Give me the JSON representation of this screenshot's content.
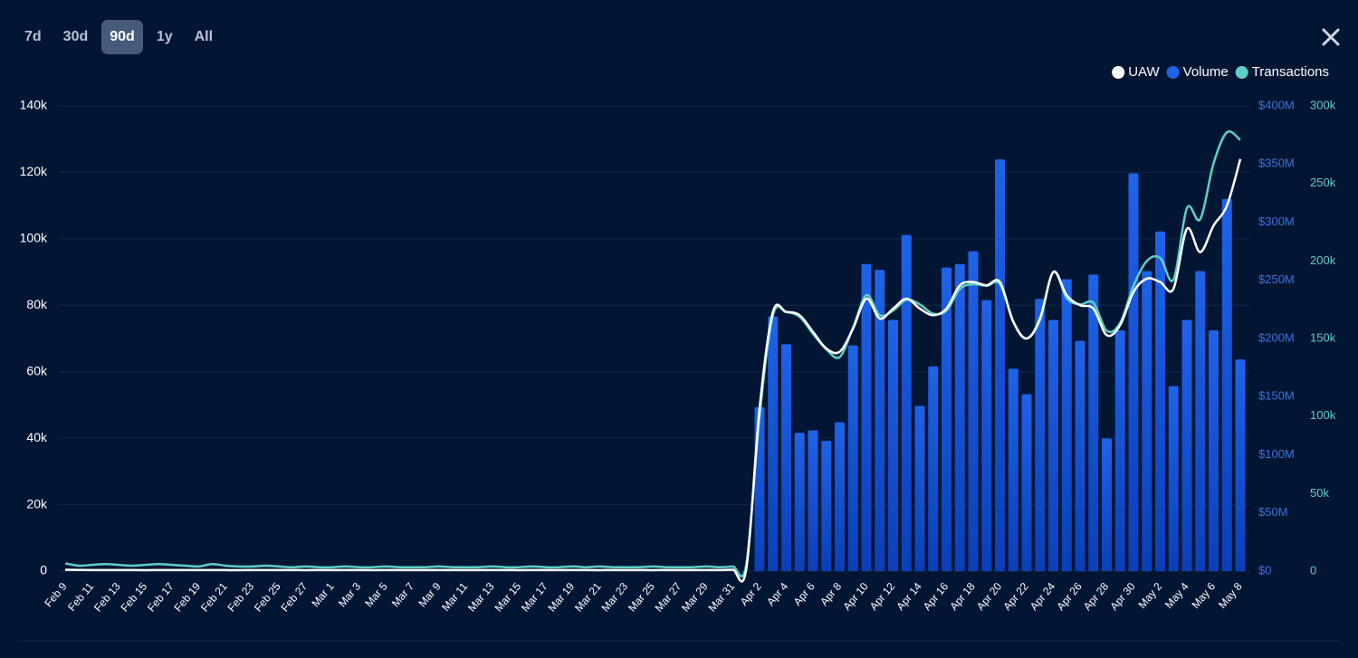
{
  "ranges": [
    "7d",
    "30d",
    "90d",
    "1y",
    "All"
  ],
  "selected_range": "90d",
  "chart_data": {
    "type": "combo",
    "categories": [
      "Feb 9",
      null,
      "Feb 11",
      null,
      "Feb 13",
      null,
      "Feb 15",
      null,
      "Feb 17",
      null,
      "Feb 19",
      null,
      "Feb 21",
      null,
      "Feb 23",
      null,
      "Feb 25",
      null,
      "Feb 27",
      null,
      "Mar 1",
      null,
      "Mar 3",
      null,
      "Mar 5",
      null,
      "Mar 7",
      null,
      "Mar 9",
      null,
      "Mar 11",
      null,
      "Mar 13",
      null,
      "Mar 15",
      null,
      "Mar 17",
      null,
      "Mar 19",
      null,
      "Mar 21",
      null,
      "Mar 23",
      null,
      "Mar 25",
      null,
      "Mar 27",
      null,
      "Mar 29",
      null,
      "Mar 31",
      null,
      "Apr 2",
      null,
      "Apr 4",
      null,
      "Apr 6",
      null,
      "Apr 8",
      null,
      "Apr 10",
      null,
      "Apr 12",
      null,
      "Apr 14",
      null,
      "Apr 16",
      null,
      "Apr 18",
      null,
      "Apr 20",
      null,
      "Apr 22",
      null,
      "Apr 24",
      null,
      "Apr 26",
      null,
      "Apr 28",
      null,
      "Apr 30",
      null,
      "May 2",
      null,
      "May 4",
      null,
      "May 6",
      null,
      "May 8"
    ],
    "series": [
      {
        "name": "UAW",
        "type": "line",
        "color": "#ffffff",
        "axis": "y",
        "values": [
          400,
          350,
          300,
          300,
          320,
          300,
          280,
          300,
          310,
          290,
          300,
          300,
          290,
          280,
          300,
          300,
          290,
          300,
          280,
          300,
          300,
          290,
          300,
          280,
          300,
          290,
          300,
          310,
          300,
          290,
          300,
          300,
          290,
          300,
          280,
          300,
          290,
          300,
          300,
          290,
          280,
          300,
          290,
          300,
          280,
          300,
          290,
          300,
          310,
          300,
          400,
          500,
          49000,
          78000,
          78000,
          77000,
          72000,
          67000,
          66000,
          73000,
          82000,
          76000,
          79000,
          82000,
          79000,
          77000,
          79000,
          86000,
          87000,
          86000,
          87000,
          75000,
          70000,
          76000,
          90000,
          83000,
          80000,
          79000,
          71000,
          74000,
          84000,
          88000,
          87000,
          85000,
          103000,
          96000,
          104000,
          110000,
          124000
        ]
      },
      {
        "name": "Volume",
        "type": "bar",
        "color": "#1f63e8",
        "axis": "y2",
        "values": [
          null,
          null,
          null,
          null,
          null,
          null,
          null,
          null,
          null,
          null,
          null,
          null,
          null,
          null,
          null,
          null,
          null,
          null,
          null,
          null,
          null,
          null,
          null,
          null,
          null,
          null,
          null,
          null,
          null,
          null,
          null,
          null,
          null,
          null,
          null,
          null,
          null,
          null,
          null,
          null,
          null,
          null,
          null,
          null,
          null,
          null,
          null,
          null,
          null,
          null,
          null,
          null,
          141000000,
          219000000,
          195000000,
          119000000,
          121000000,
          112000000,
          128000000,
          194000000,
          264000000,
          259000000,
          216000000,
          289000000,
          142000000,
          176000000,
          261000000,
          264000000,
          275000000,
          233000000,
          354000000,
          174000000,
          152000000,
          234000000,
          216000000,
          251000000,
          198000000,
          255000000,
          114000000,
          207000000,
          342000000,
          258000000,
          292000000,
          159000000,
          216000000,
          258000000,
          207000000,
          320000000,
          182000000
        ]
      },
      {
        "name": "Transactions",
        "type": "line",
        "color": "#5ecfc4",
        "axis": "y3",
        "values": [
          5000,
          3500,
          4000,
          4500,
          4000,
          3500,
          4000,
          4500,
          4000,
          3500,
          3000,
          4500,
          3500,
          3000,
          3000,
          3500,
          3000,
          2500,
          3000,
          2500,
          2500,
          3000,
          2500,
          2500,
          3000,
          2500,
          2500,
          2500,
          3000,
          2500,
          2500,
          2500,
          3000,
          2500,
          2500,
          3000,
          2500,
          2500,
          3000,
          2500,
          3000,
          2500,
          2500,
          2500,
          3000,
          2500,
          2500,
          2500,
          3000,
          2500,
          3000,
          4000,
          100000,
          165000,
          167000,
          164000,
          153000,
          143000,
          138000,
          157000,
          178000,
          165000,
          168000,
          175000,
          172000,
          166000,
          168000,
          182000,
          185000,
          184000,
          185000,
          161000,
          150000,
          162000,
          193000,
          176000,
          172000,
          173000,
          155000,
          160000,
          184000,
          200000,
          202000,
          188000,
          234000,
          227000,
          263000,
          283000,
          278000
        ]
      }
    ],
    "ylim": [
      0,
      140000
    ],
    "yticks": [
      0,
      {
        "value": 20000,
        "label": "20k"
      },
      {
        "value": 40000,
        "label": "40k"
      },
      {
        "value": 60000,
        "label": "60k"
      },
      {
        "value": 80000,
        "label": "80k"
      },
      {
        "value": 100000,
        "label": "100k"
      },
      {
        "value": 120000,
        "label": "120k"
      },
      {
        "value": 140000,
        "label": "140k"
      }
    ],
    "y2lim": [
      0,
      400000000
    ],
    "y2ticks": [
      {
        "value": 0,
        "label": "$0"
      },
      {
        "value": 50000000,
        "label": "$50M"
      },
      {
        "value": 100000000,
        "label": "$100M"
      },
      {
        "value": 150000000,
        "label": "$150M"
      },
      {
        "value": 200000000,
        "label": "$200M"
      },
      {
        "value": 250000000,
        "label": "$250M"
      },
      {
        "value": 300000000,
        "label": "$300M"
      },
      {
        "value": 350000000,
        "label": "$350M"
      },
      {
        "value": 400000000,
        "label": "$400M"
      }
    ],
    "y3lim": [
      0,
      300000
    ],
    "y3ticks": [
      0,
      {
        "value": 50000,
        "label": "50k"
      },
      {
        "value": 100000,
        "label": "100k"
      },
      {
        "value": 150000,
        "label": "150k"
      },
      {
        "value": 200000,
        "label": "200k"
      },
      {
        "value": 250000,
        "label": "250k"
      },
      {
        "value": 300000,
        "label": "300k"
      }
    ],
    "y2tick_color": "#3e72dc",
    "y3tick_color": "#5ecfc4",
    "grid": true,
    "legend": "top-right"
  }
}
